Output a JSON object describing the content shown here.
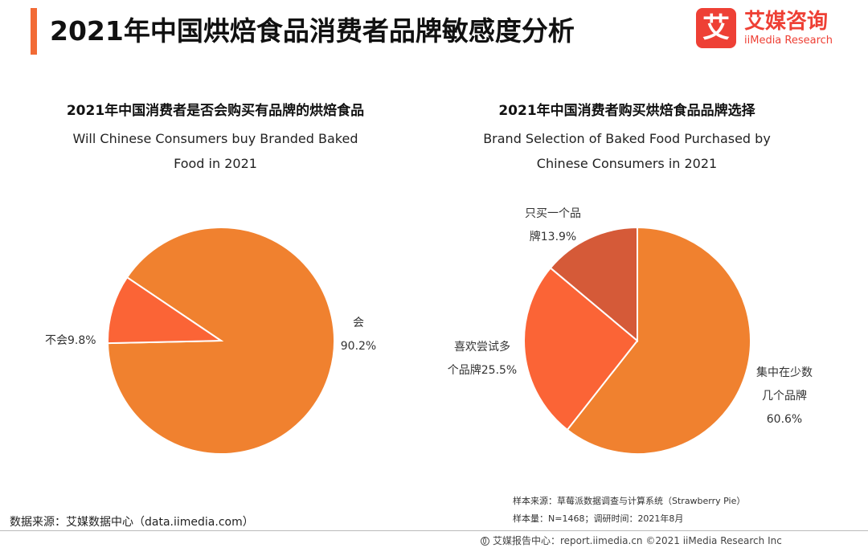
{
  "header": {
    "title": "2021年中国烘焙食品消费者品牌敏感度分析",
    "logo_icon_text": "艾",
    "logo_cn": "艾媒咨询",
    "logo_en": "iiMedia Research"
  },
  "colors": {
    "accent": "#f26b36",
    "slice_main": "#f0812f",
    "slice_second": "#fb6436",
    "slice_third": "#d55a38",
    "logo_red": "#ee4035"
  },
  "chart_data": [
    {
      "type": "pie",
      "title": "2021年中国消费者是否会购买有品牌的烘焙食品",
      "subtitle_lines": [
        "Will Chinese Consumers buy Branded Baked",
        "Food in 2021"
      ],
      "slices": [
        {
          "label_lines": [
            "会",
            "90.2%"
          ],
          "name": "会",
          "value": 90.2,
          "color": "#f0812f"
        },
        {
          "label_lines": [
            "不会9.8%"
          ],
          "name": "不会",
          "value": 9.8,
          "color": "#fb6436"
        }
      ]
    },
    {
      "type": "pie",
      "title": "2021年中国消费者购买烘焙食品品牌选择",
      "subtitle_lines": [
        "Brand Selection of Baked Food Purchased by",
        "Chinese Consumers in 2021"
      ],
      "slices": [
        {
          "label_lines": [
            "集中在少数",
            "几个品牌",
            "60.6%"
          ],
          "name": "集中在少数几个品牌",
          "value": 60.6,
          "color": "#f0812f"
        },
        {
          "label_lines": [
            "喜欢尝试多",
            "个品牌25.5%"
          ],
          "name": "喜欢尝试多个品牌",
          "value": 25.5,
          "color": "#fb6436"
        },
        {
          "label_lines": [
            "只买一个品",
            "牌13.9%"
          ],
          "name": "只买一个品牌",
          "value": 13.9,
          "color": "#d55a38"
        }
      ]
    }
  ],
  "footer": {
    "source_left": "数据来源：艾媒数据中心（data.iimedia.com）",
    "sample_source": "样本来源：草莓派数据调查与计算系统（Strawberry Pie）",
    "sample_size": "样本量：N=1468；调研时间：2021年8月",
    "report_center": "艾媒报告中心：report.iimedia.cn    ©2021  iiMedia Research  Inc"
  }
}
